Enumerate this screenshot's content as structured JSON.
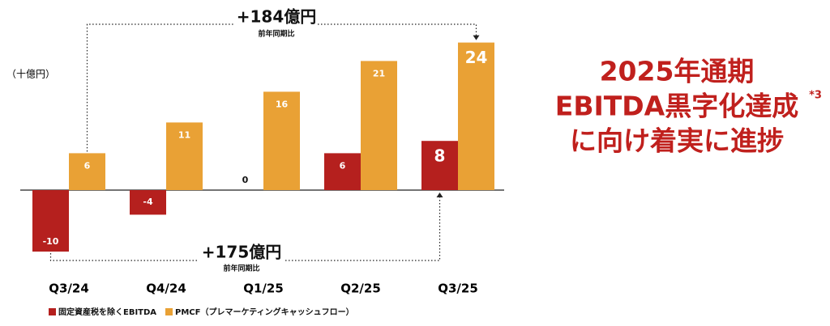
{
  "chart_data": {
    "type": "bar",
    "y_label": "（十億円）",
    "categories": [
      "Q3/24",
      "Q4/24",
      "Q1/25",
      "Q2/25",
      "Q3/25"
    ],
    "series": [
      {
        "name": "固定資産税を除くEBITDA",
        "color": "#b5201e",
        "values": [
          -10,
          -4,
          0,
          6,
          8
        ]
      },
      {
        "name": "PMCF（プレマーケティングキャッシュフロー）",
        "color": "#e9a135",
        "values": [
          6,
          11,
          16,
          21,
          24
        ]
      }
    ],
    "annotations": [
      {
        "text": "+184億円",
        "subtext": "前年同期比"
      },
      {
        "text": "+175億円",
        "subtext": "前年同期比"
      }
    ]
  },
  "headline": {
    "lines": [
      "2025年通期",
      "EBITDA黒字化達成",
      "に向け着実に進捗"
    ],
    "footnote": "*3"
  }
}
